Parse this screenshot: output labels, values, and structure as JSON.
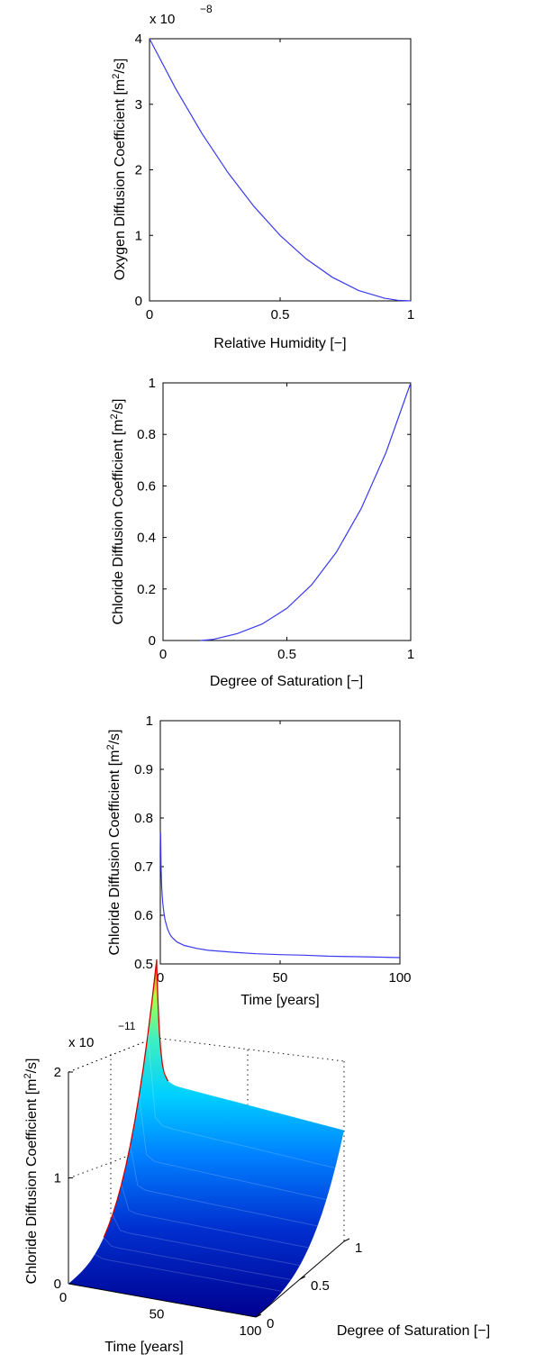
{
  "chart_data": [
    {
      "type": "line",
      "xlabel": "Relative Humidity [−]",
      "ylabel_main": "Oxygen Diffusion Coefficient [m",
      "ylabel_sup": "2",
      "ylabel_end": "/s]",
      "exponent_base": "x 10",
      "exponent_power": "−8",
      "xlim": [
        0,
        1
      ],
      "ylim": [
        0,
        4
      ],
      "xticks": [
        "0",
        "0.5",
        "1"
      ],
      "yticks": [
        "0",
        "1",
        "2",
        "3",
        "4"
      ],
      "series": [
        {
          "x": [
            0,
            0.1,
            0.2,
            0.3,
            0.4,
            0.5,
            0.6,
            0.7,
            0.8,
            0.9,
            0.95,
            1.0
          ],
          "y": [
            4.0,
            3.24,
            2.56,
            1.96,
            1.44,
            1.0,
            0.64,
            0.36,
            0.16,
            0.04,
            0.01,
            0.0
          ]
        }
      ]
    },
    {
      "type": "line",
      "xlabel": "Degree of Saturation [−]",
      "ylabel_main": "Chloride Diffusion Coefficient [m",
      "ylabel_sup": "2",
      "ylabel_end": "/s]",
      "xlim": [
        0,
        1
      ],
      "ylim": [
        0,
        1
      ],
      "xticks": [
        "0",
        "0.5",
        "1"
      ],
      "yticks": [
        "0",
        "0.2",
        "0.4",
        "0.6",
        "0.8",
        "1"
      ],
      "series": [
        {
          "x": [
            0.15,
            0.2,
            0.3,
            0.4,
            0.5,
            0.6,
            0.7,
            0.8,
            0.9,
            1.0
          ],
          "y": [
            0.0,
            0.004,
            0.027,
            0.064,
            0.125,
            0.216,
            0.343,
            0.512,
            0.729,
            1.0
          ]
        }
      ]
    },
    {
      "type": "line",
      "xlabel": "Time [years]",
      "ylabel_main": "Chloride Diffusion Coefficient [m",
      "ylabel_sup": "2",
      "ylabel_end": "/s]",
      "xlim": [
        0,
        100
      ],
      "ylim": [
        0.5,
        1
      ],
      "xticks": [
        "0",
        "50",
        "100"
      ],
      "yticks": [
        "0.5",
        "0.6",
        "0.7",
        "0.8",
        "0.9",
        "1"
      ],
      "series": [
        {
          "x": [
            0.1,
            0.3,
            0.6,
            1,
            1.5,
            2,
            3,
            4,
            5,
            7,
            10,
            15,
            20,
            30,
            40,
            50,
            60,
            70,
            80,
            90,
            100
          ],
          "y": [
            0.77,
            0.7,
            0.655,
            0.625,
            0.605,
            0.59,
            0.572,
            0.561,
            0.554,
            0.545,
            0.538,
            0.532,
            0.528,
            0.524,
            0.521,
            0.519,
            0.518,
            0.516,
            0.515,
            0.514,
            0.513
          ]
        }
      ]
    },
    {
      "type": "surface",
      "xlabel": "Time [years]",
      "ylabel": "Degree of Saturation [−]",
      "zlabel_main": "Chloride Diffusion Coefficient [m",
      "zlabel_sup": "2",
      "zlabel_end": "/s]",
      "exponent_base": "x 10",
      "exponent_power": "−11",
      "xlim": [
        0,
        100
      ],
      "ylim": [
        0,
        1
      ],
      "zlim": [
        0,
        2
      ],
      "xticks": [
        "0",
        "50",
        "100"
      ],
      "yticks": [
        "0",
        "0.5",
        "1"
      ],
      "zticks": [
        "0",
        "1",
        "2"
      ],
      "colormap": [
        "#00008f",
        "#0050ff",
        "#00d0ff",
        "#50ffb0",
        "#d0ff30",
        "#ff8000",
        "#c00000"
      ],
      "z_peak": 2.35,
      "z_plateau": 1.2
    }
  ]
}
